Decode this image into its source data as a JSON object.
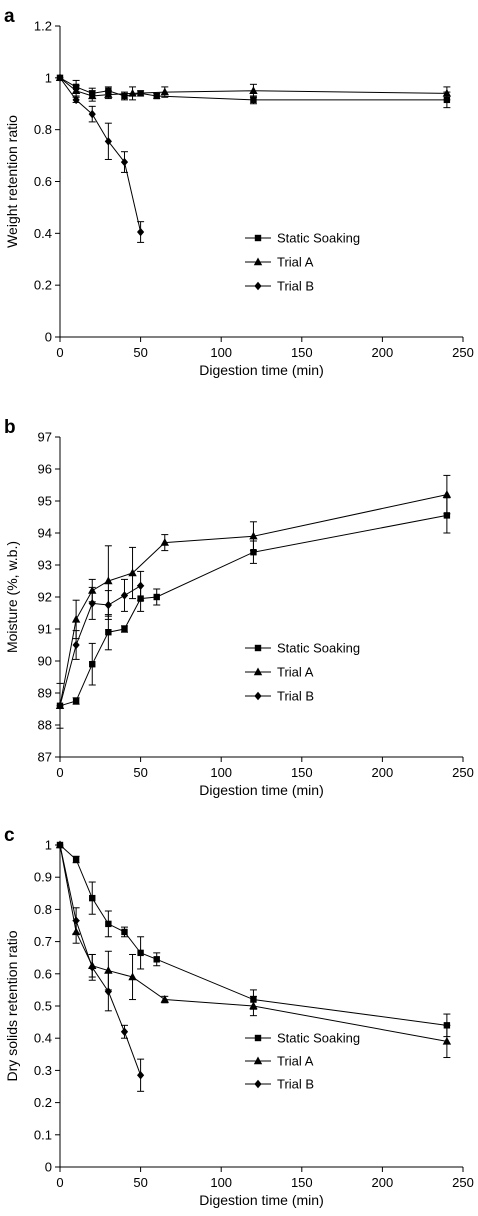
{
  "chart_data": [
    {
      "panel": "a",
      "type": "line",
      "xlabel": "Digestion time (min)",
      "ylabel": "Weight retention ratio",
      "xlim": [
        0,
        250
      ],
      "ylim": [
        0,
        1.2
      ],
      "xticks": [
        0,
        50,
        100,
        150,
        200,
        250
      ],
      "yticks": [
        0,
        0.2,
        0.4,
        0.6,
        0.8,
        1,
        1.2
      ],
      "ytick_labels": [
        "0",
        "0.2",
        "0.4",
        "0.6",
        "0.8",
        "1",
        "1.2"
      ],
      "legend_position": "center-right",
      "series": [
        {
          "name": "Static Soaking",
          "marker": "square",
          "points": [
            [
              0,
              1.0,
              0
            ],
            [
              10,
              0.965,
              0.025
            ],
            [
              20,
              0.94,
              0.02
            ],
            [
              30,
              0.95,
              0.015
            ],
            [
              40,
              0.93,
              0.015
            ],
            [
              50,
              0.94,
              0.01
            ],
            [
              60,
              0.93,
              0.01
            ],
            [
              120,
              0.915,
              0.015
            ],
            [
              240,
              0.915,
              0.03
            ]
          ]
        },
        {
          "name": "Trial A",
          "marker": "triangle",
          "points": [
            [
              0,
              1.0,
              0
            ],
            [
              10,
              0.95,
              0.02
            ],
            [
              20,
              0.93,
              0.02
            ],
            [
              30,
              0.935,
              0.015
            ],
            [
              45,
              0.94,
              0.025
            ],
            [
              65,
              0.945,
              0.02
            ],
            [
              120,
              0.95,
              0.025
            ],
            [
              240,
              0.94,
              0.025
            ]
          ]
        },
        {
          "name": "Trial B",
          "marker": "diamond",
          "points": [
            [
              0,
              1.0,
              0
            ],
            [
              10,
              0.915,
              0.01
            ],
            [
              20,
              0.86,
              0.03
            ],
            [
              30,
              0.755,
              0.07
            ],
            [
              40,
              0.675,
              0.04
            ],
            [
              50,
              0.405,
              0.04
            ]
          ]
        }
      ]
    },
    {
      "panel": "b",
      "type": "line",
      "xlabel": "Digestion time (min)",
      "ylabel": "Moisture (%, w.b.)",
      "xlim": [
        0,
        250
      ],
      "ylim": [
        87,
        97
      ],
      "xticks": [
        0,
        50,
        100,
        150,
        200,
        250
      ],
      "yticks": [
        87,
        88,
        89,
        90,
        91,
        92,
        93,
        94,
        95,
        96,
        97
      ],
      "ytick_labels": [
        "87",
        "88",
        "89",
        "90",
        "91",
        "92",
        "93",
        "94",
        "95",
        "96",
        "97"
      ],
      "legend_position": "center-right",
      "series": [
        {
          "name": "Static Soaking",
          "marker": "square",
          "points": [
            [
              0,
              88.6,
              0.7
            ],
            [
              10,
              88.75,
              0.1
            ],
            [
              20,
              89.9,
              0.65
            ],
            [
              30,
              90.9,
              0.55
            ],
            [
              40,
              91.0,
              0.1
            ],
            [
              50,
              91.95,
              0.4
            ],
            [
              60,
              92.0,
              0.25
            ],
            [
              120,
              93.4,
              0.35
            ],
            [
              240,
              94.55,
              0.55
            ]
          ]
        },
        {
          "name": "Trial A",
          "marker": "triangle",
          "points": [
            [
              0,
              88.6,
              0
            ],
            [
              10,
              91.3,
              0.6
            ],
            [
              20,
              92.2,
              0.35
            ],
            [
              30,
              92.5,
              1.1
            ],
            [
              45,
              92.75,
              0.8
            ],
            [
              65,
              93.7,
              0.25
            ],
            [
              120,
              93.9,
              0.45
            ],
            [
              240,
              95.2,
              0.6
            ]
          ]
        },
        {
          "name": "Trial B",
          "marker": "diamond",
          "points": [
            [
              0,
              88.6,
              0
            ],
            [
              10,
              90.5,
              0.45
            ],
            [
              20,
              91.8,
              0.5
            ],
            [
              30,
              91.75,
              0.45
            ],
            [
              40,
              92.05,
              0.5
            ],
            [
              50,
              92.35,
              0.45
            ]
          ]
        }
      ]
    },
    {
      "panel": "c",
      "type": "line",
      "xlabel": "Digestion time (min)",
      "ylabel": "Dry solids retention ratio",
      "xlim": [
        0,
        250
      ],
      "ylim": [
        0,
        1
      ],
      "xticks": [
        0,
        50,
        100,
        150,
        200,
        250
      ],
      "yticks": [
        0,
        0.1,
        0.2,
        0.3,
        0.4,
        0.5,
        0.6,
        0.7,
        0.8,
        0.9,
        1
      ],
      "ytick_labels": [
        "0",
        "0.1",
        "0.2",
        "0.3",
        "0.4",
        "0.5",
        "0.6",
        "0.7",
        "0.8",
        "0.9",
        "1"
      ],
      "legend_position": "bottom-right",
      "series": [
        {
          "name": "Static Soaking",
          "marker": "square",
          "points": [
            [
              0,
              1.0,
              0
            ],
            [
              10,
              0.955,
              0.01
            ],
            [
              20,
              0.835,
              0.05
            ],
            [
              30,
              0.755,
              0.04
            ],
            [
              40,
              0.73,
              0.015
            ],
            [
              50,
              0.665,
              0.05
            ],
            [
              60,
              0.645,
              0.02
            ],
            [
              120,
              0.52,
              0.03
            ],
            [
              240,
              0.44,
              0.035
            ]
          ]
        },
        {
          "name": "Trial A",
          "marker": "triangle",
          "points": [
            [
              0,
              1.0,
              0
            ],
            [
              10,
              0.73,
              0.035
            ],
            [
              20,
              0.625,
              0.035
            ],
            [
              30,
              0.61,
              0.06
            ],
            [
              45,
              0.59,
              0.07
            ],
            [
              65,
              0.52,
              0.01
            ],
            [
              120,
              0.5,
              0.03
            ],
            [
              240,
              0.39,
              0.05
            ]
          ]
        },
        {
          "name": "Trial B",
          "marker": "diamond",
          "points": [
            [
              0,
              1.0,
              0
            ],
            [
              10,
              0.765,
              0.04
            ],
            [
              20,
              0.62,
              0.04
            ],
            [
              30,
              0.545,
              0.06
            ],
            [
              40,
              0.42,
              0.02
            ],
            [
              50,
              0.285,
              0.05
            ]
          ]
        }
      ]
    }
  ]
}
